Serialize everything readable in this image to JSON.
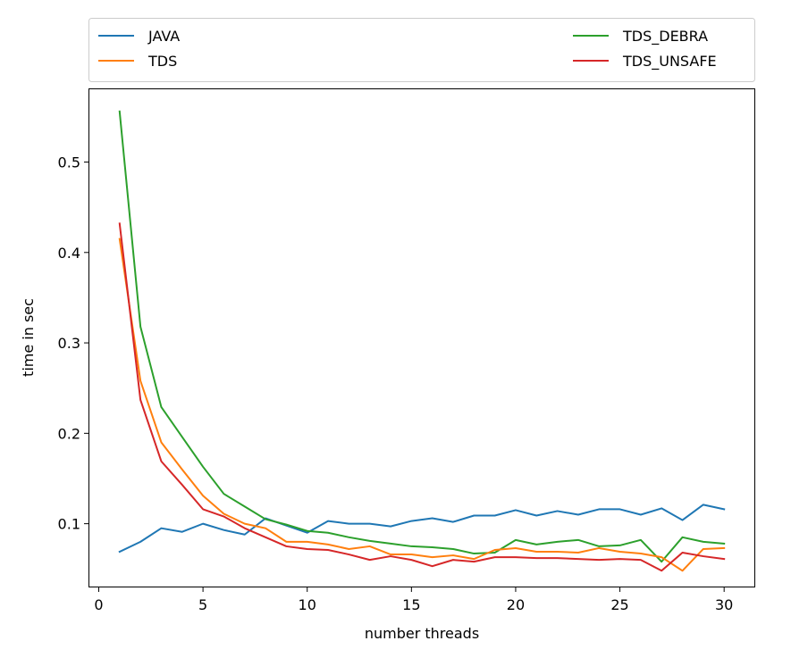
{
  "chart_data": {
    "type": "line",
    "xlabel": "number threads",
    "ylabel": "time in sec",
    "xlim": [
      -0.45,
      31.45
    ],
    "ylim": [
      0.0305,
      0.5805
    ],
    "xticks": [
      0,
      5,
      10,
      15,
      20,
      25,
      30
    ],
    "yticks": [
      0.1,
      0.2,
      0.3,
      0.4,
      0.5
    ],
    "legend_position": "top, above plot (2 columns)",
    "grid": false,
    "x": [
      1,
      2,
      3,
      4,
      5,
      6,
      7,
      8,
      9,
      10,
      11,
      12,
      13,
      14,
      15,
      16,
      17,
      18,
      19,
      20,
      21,
      22,
      23,
      24,
      25,
      26,
      27,
      28,
      29,
      30
    ],
    "series": [
      {
        "name": "JAVA",
        "color": "#1f77b4",
        "values": [
          0.069,
          0.08,
          0.095,
          0.091,
          0.1,
          0.093,
          0.088,
          0.106,
          0.098,
          0.09,
          0.103,
          0.1,
          0.1,
          0.097,
          0.103,
          0.106,
          0.102,
          0.109,
          0.109,
          0.115,
          0.109,
          0.114,
          0.11,
          0.116,
          0.116,
          0.11,
          0.117,
          0.104,
          0.121,
          0.116
        ]
      },
      {
        "name": "TDS_DEBRA",
        "color": "#2ca02c",
        "values": [
          0.556,
          0.318,
          0.229,
          0.196,
          0.163,
          0.133,
          0.119,
          0.105,
          0.099,
          0.092,
          0.09,
          0.085,
          0.081,
          0.078,
          0.075,
          0.074,
          0.072,
          0.067,
          0.068,
          0.082,
          0.077,
          0.08,
          0.082,
          0.075,
          0.076,
          0.082,
          0.058,
          0.085,
          0.08,
          0.078
        ]
      },
      {
        "name": "TDS",
        "color": "#ff7f0e",
        "values": [
          0.415,
          0.258,
          0.19,
          0.16,
          0.131,
          0.111,
          0.1,
          0.095,
          0.08,
          0.08,
          0.077,
          0.072,
          0.075,
          0.066,
          0.066,
          0.063,
          0.065,
          0.061,
          0.071,
          0.073,
          0.069,
          0.069,
          0.068,
          0.073,
          0.069,
          0.067,
          0.063,
          0.048,
          0.072,
          0.073
        ]
      },
      {
        "name": "TDS_UNSAFE",
        "color": "#d62728",
        "values": [
          0.432,
          0.237,
          0.169,
          0.143,
          0.116,
          0.108,
          0.095,
          0.085,
          0.075,
          0.072,
          0.071,
          0.066,
          0.06,
          0.064,
          0.06,
          0.053,
          0.06,
          0.058,
          0.063,
          0.063,
          0.062,
          0.062,
          0.061,
          0.06,
          0.061,
          0.06,
          0.048,
          0.068,
          0.064,
          0.061
        ]
      }
    ]
  }
}
